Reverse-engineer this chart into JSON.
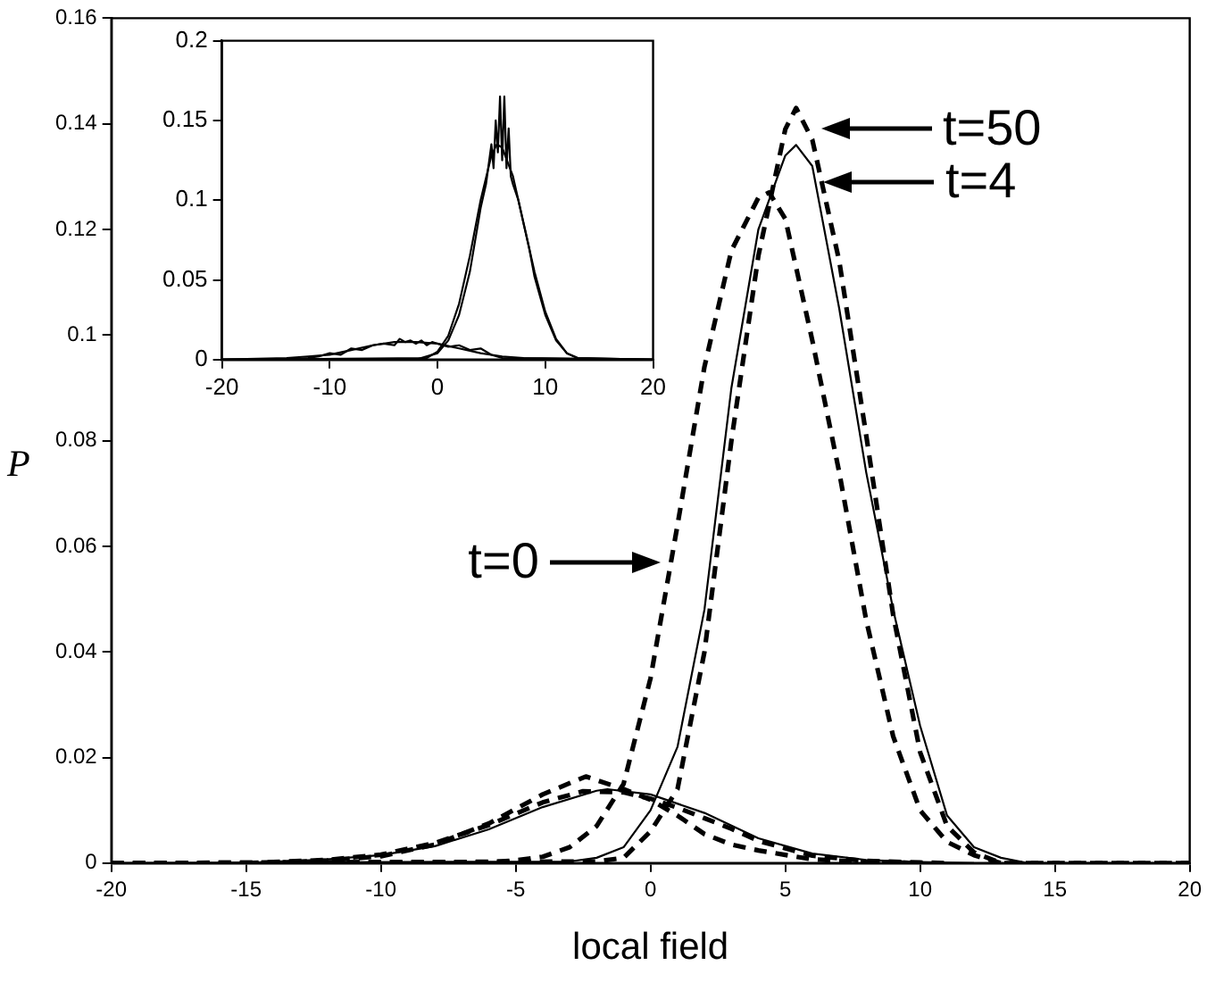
{
  "chart_data": [
    {
      "type": "line",
      "xlabel": "local field",
      "ylabel": "P",
      "xlim": [
        -20,
        20
      ],
      "ylim": [
        0,
        0.16
      ],
      "xticks": [
        -20,
        -15,
        -10,
        -5,
        0,
        5,
        10,
        15,
        20
      ],
      "yticks": [
        0,
        0.02,
        0.04,
        0.06,
        0.08,
        0.1,
        0.12,
        0.14,
        0.16
      ],
      "marker": "none",
      "legend": false,
      "grid": false,
      "series": [
        {
          "color": "#000000",
          "line_style": "dashed",
          "x": [
            -20,
            -6,
            -5,
            -4,
            -3,
            -2,
            -1,
            0,
            1,
            2,
            3,
            4,
            4.4,
            5,
            6,
            7,
            8,
            9,
            10,
            11,
            12,
            13,
            20
          ],
          "values": [
            0,
            0.0002,
            0.0005,
            0.0012,
            0.003,
            0.007,
            0.015,
            0.035,
            0.064,
            0.094,
            0.116,
            0.126,
            0.127,
            0.122,
            0.099,
            0.074,
            0.046,
            0.024,
            0.01,
            0.004,
            0.0015,
            0,
            0
          ]
        },
        {
          "color": "#000000",
          "line_style": "solid",
          "x": [
            -20,
            -3,
            -2,
            -1,
            0,
            1,
            2,
            3,
            4,
            5,
            5.4,
            6,
            7,
            8,
            9,
            10,
            11,
            12,
            13,
            14,
            20
          ],
          "values": [
            0,
            0.0003,
            0.001,
            0.003,
            0.01,
            0.022,
            0.048,
            0.09,
            0.12,
            0.134,
            0.136,
            0.132,
            0.105,
            0.074,
            0.048,
            0.026,
            0.009,
            0.003,
            0.001,
            0,
            0
          ]
        },
        {
          "color": "#000000",
          "line_style": "dashed",
          "x": [
            -20,
            -2,
            -1,
            0,
            1,
            2,
            3,
            4,
            5,
            5.4,
            6,
            7,
            8,
            9,
            10,
            11,
            12,
            13,
            20
          ],
          "values": [
            0,
            0.0003,
            0.001,
            0.006,
            0.014,
            0.04,
            0.08,
            0.115,
            0.139,
            0.143,
            0.137,
            0.114,
            0.081,
            0.047,
            0.021,
            0.007,
            0.002,
            0,
            0
          ]
        },
        {
          "color": "#000000",
          "line_style": "dashed",
          "x": [
            -14,
            -12,
            -10,
            -8,
            -6,
            -4,
            -2.4,
            -1,
            0,
            1,
            2,
            3,
            4,
            6,
            8,
            10
          ],
          "values": [
            0,
            0.0005,
            0.0013,
            0.0035,
            0.0075,
            0.013,
            0.0164,
            0.014,
            0.012,
            0.009,
            0.0055,
            0.0035,
            0.0024,
            0.0007,
            0.0002,
            0
          ]
        },
        {
          "color": "#000000",
          "line_style": "solid",
          "x": [
            -16,
            -14,
            -12,
            -10,
            -8,
            -6,
            -4,
            -2,
            -1.6,
            0,
            2,
            4,
            6,
            8,
            10,
            12
          ],
          "values": [
            0,
            0.0002,
            0.0007,
            0.0015,
            0.0032,
            0.0064,
            0.0106,
            0.0137,
            0.014,
            0.013,
            0.0095,
            0.0047,
            0.0018,
            0.0006,
            0.0002,
            0
          ]
        },
        {
          "color": "#000000",
          "line_style": "dashed",
          "x": [
            -15,
            -14,
            -12,
            -10,
            -8,
            -6,
            -4,
            -2.5,
            -1,
            0,
            1,
            2,
            3,
            4,
            6,
            8,
            10,
            11
          ],
          "values": [
            0,
            0.0002,
            0.0006,
            0.0016,
            0.0038,
            0.0072,
            0.0115,
            0.0136,
            0.0134,
            0.0122,
            0.0105,
            0.0085,
            0.0065,
            0.0042,
            0.0014,
            0.0004,
            0.0001,
            0
          ]
        }
      ],
      "annotations": [
        {
          "text": "t=50",
          "x": 6.2,
          "y": 0.139
        },
        {
          "text": "t=4",
          "x": 6.3,
          "y": 0.129
        },
        {
          "text": "t=0",
          "x": 0.5,
          "y": 0.057
        }
      ]
    },
    {
      "type": "line",
      "xlim": [
        -20,
        20
      ],
      "ylim": [
        0,
        0.2
      ],
      "xticks": [
        -20,
        -10,
        0,
        10,
        20
      ],
      "yticks": [
        0,
        0.05,
        0.1,
        0.15,
        0.2
      ],
      "marker": "none",
      "legend": false,
      "grid": false,
      "series": [
        {
          "color": "#000000",
          "line_style": "solid",
          "x": [
            -20,
            -2,
            0,
            1,
            2,
            3,
            3.5,
            4,
            4.5,
            5,
            5.2,
            5.4,
            5.6,
            5.8,
            6,
            6.2,
            6.4,
            6.6,
            6.8,
            7,
            7.5,
            8,
            8.5,
            9,
            9.5,
            10,
            10.5,
            11,
            12,
            13,
            20
          ],
          "values": [
            0,
            0,
            0.004,
            0.012,
            0.028,
            0.055,
            0.075,
            0.095,
            0.11,
            0.135,
            0.12,
            0.15,
            0.13,
            0.165,
            0.125,
            0.165,
            0.12,
            0.145,
            0.115,
            0.11,
            0.1,
            0.085,
            0.07,
            0.052,
            0.04,
            0.028,
            0.02,
            0.012,
            0.004,
            0.001,
            0
          ]
        },
        {
          "color": "#000000",
          "line_style": "solid",
          "x": [
            -20,
            -1,
            0,
            1,
            2,
            3,
            4,
            5,
            5.5,
            6,
            7,
            8,
            9,
            10,
            11,
            12,
            13,
            20
          ],
          "values": [
            0,
            0.001,
            0.005,
            0.015,
            0.035,
            0.065,
            0.1,
            0.128,
            0.135,
            0.133,
            0.115,
            0.085,
            0.055,
            0.03,
            0.013,
            0.004,
            0.001,
            0
          ]
        },
        {
          "color": "#000000",
          "line_style": "solid",
          "x": [
            -20,
            -14,
            -12,
            -11,
            -10,
            -9,
            -8,
            -7,
            -6,
            -5,
            -4,
            -3.5,
            -3,
            -2.5,
            -2,
            -1.5,
            -1,
            -0.5,
            0,
            1,
            2,
            3,
            4,
            5,
            6,
            20
          ],
          "values": [
            0,
            0,
            0.001,
            0.002,
            0.004,
            0.003,
            0.007,
            0.006,
            0.009,
            0.01,
            0.009,
            0.013,
            0.011,
            0.012,
            0.01,
            0.012,
            0.009,
            0.011,
            0.01,
            0.008,
            0.009,
            0.006,
            0.007,
            0.003,
            0.001,
            0
          ]
        },
        {
          "color": "#000000",
          "line_style": "solid",
          "x": [
            -20,
            -14,
            -12,
            -10,
            -8,
            -6,
            -4,
            -3,
            -2,
            0,
            2,
            4,
            6,
            8,
            20
          ],
          "values": [
            0,
            0.001,
            0.002,
            0.003,
            0.006,
            0.009,
            0.011,
            0.011,
            0.011,
            0.01,
            0.007,
            0.004,
            0.002,
            0.001,
            0
          ]
        }
      ]
    }
  ]
}
